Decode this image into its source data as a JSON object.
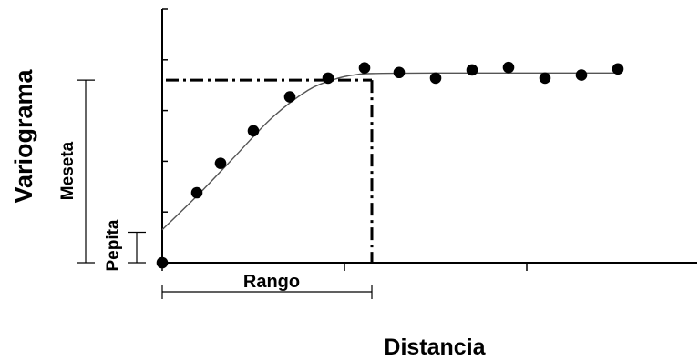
{
  "labels": {
    "y_axis": "Variograma",
    "x_axis": "Distancia",
    "sill": "Meseta",
    "nugget": "Pepita",
    "range": "Rango"
  },
  "colors": {
    "ink": "#000000",
    "curve": "#555555"
  },
  "chart_data": {
    "type": "scatter",
    "title": "",
    "xlabel": "Distancia",
    "ylabel": "Variograma",
    "grid": false,
    "xlim": [
      0,
      3
    ],
    "ylim": [
      0,
      5
    ],
    "x_ticks": [
      0,
      1,
      2
    ],
    "y_ticks": [
      0,
      1,
      2,
      3,
      4,
      5
    ],
    "nugget": 0.6,
    "sill": 3.6,
    "range": 1.15,
    "points": [
      {
        "x": 0.0,
        "y": 0.0
      },
      {
        "x": 0.19,
        "y": 1.38
      },
      {
        "x": 0.32,
        "y": 1.96
      },
      {
        "x": 0.5,
        "y": 2.6
      },
      {
        "x": 0.7,
        "y": 3.27
      },
      {
        "x": 0.91,
        "y": 3.64
      },
      {
        "x": 1.11,
        "y": 3.84
      },
      {
        "x": 1.3,
        "y": 3.75
      },
      {
        "x": 1.5,
        "y": 3.64
      },
      {
        "x": 1.7,
        "y": 3.8
      },
      {
        "x": 1.9,
        "y": 3.85
      },
      {
        "x": 2.1,
        "y": 3.64
      },
      {
        "x": 2.3,
        "y": 3.7
      },
      {
        "x": 2.5,
        "y": 3.82
      }
    ],
    "curve": [
      {
        "x": 0.0,
        "y": 0.65
      },
      {
        "x": 0.2,
        "y": 1.35
      },
      {
        "x": 0.4,
        "y": 2.1
      },
      {
        "x": 0.6,
        "y": 2.85
      },
      {
        "x": 0.8,
        "y": 3.4
      },
      {
        "x": 0.95,
        "y": 3.62
      },
      {
        "x": 1.05,
        "y": 3.7
      },
      {
        "x": 1.15,
        "y": 3.73
      },
      {
        "x": 1.5,
        "y": 3.74
      },
      {
        "x": 2.5,
        "y": 3.74
      }
    ]
  }
}
